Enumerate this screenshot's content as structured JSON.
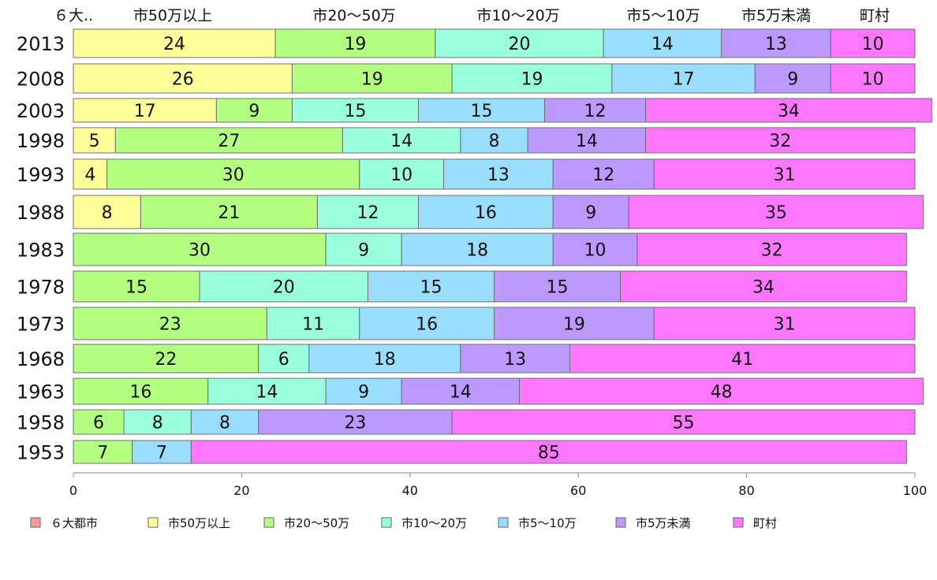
{
  "chart_data": {
    "type": "bar",
    "orientation": "horizontal",
    "stacked": true,
    "title": "",
    "xlabel": "",
    "ylabel": "",
    "xlim": [
      0,
      100
    ],
    "xticks": [
      0,
      20,
      40,
      60,
      80,
      100
    ],
    "grid": false,
    "legend_position": "bottom",
    "categories": [
      "2013",
      "2008",
      "2003",
      "1998",
      "1993",
      "1988",
      "1983",
      "1978",
      "1973",
      "1968",
      "1963",
      "1958",
      "1953"
    ],
    "column_headers": [
      "６大..",
      "市50万以上",
      "市20～50万",
      "市10～20万",
      "市5～10万",
      "市5万未満",
      "町村"
    ],
    "series": [
      {
        "name": "６大都市",
        "color": "#ff9999",
        "values": [
          0,
          0,
          0,
          0,
          0,
          0,
          0,
          0,
          0,
          0,
          0,
          0,
          0
        ]
      },
      {
        "name": "市50万以上",
        "color": "#ffff99",
        "values": [
          24,
          26,
          17,
          5,
          4,
          8,
          0,
          0,
          0,
          0,
          0,
          0,
          0
        ]
      },
      {
        "name": "市20～50万",
        "color": "#b3ff80",
        "values": [
          19,
          19,
          9,
          27,
          30,
          21,
          30,
          15,
          23,
          22,
          16,
          6,
          7
        ]
      },
      {
        "name": "市10～20万",
        "color": "#99ffdd",
        "values": [
          20,
          19,
          15,
          14,
          10,
          12,
          9,
          20,
          11,
          6,
          14,
          8,
          0
        ]
      },
      {
        "name": "市5～10万",
        "color": "#99ddff",
        "values": [
          14,
          17,
          15,
          8,
          13,
          16,
          18,
          15,
          16,
          18,
          9,
          8,
          7
        ]
      },
      {
        "name": "市5万未満",
        "color": "#bb99ff",
        "values": [
          13,
          9,
          12,
          14,
          12,
          9,
          10,
          15,
          19,
          13,
          14,
          23,
          0
        ]
      },
      {
        "name": "町村",
        "color": "#ff77ff",
        "values": [
          10,
          10,
          34,
          32,
          31,
          35,
          32,
          34,
          31,
          41,
          48,
          55,
          85
        ]
      }
    ]
  }
}
